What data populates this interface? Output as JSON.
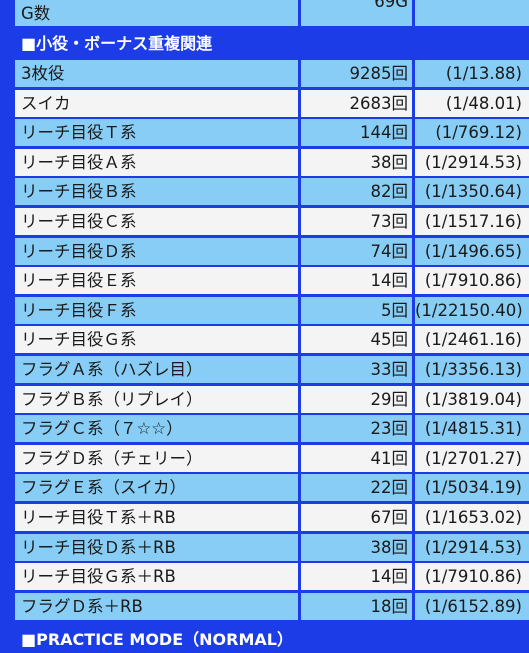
{
  "top": {
    "label": "G数",
    "count": "69G",
    "rate": ""
  },
  "section_small": "■小役・ボーナス重複関連",
  "rows": [
    {
      "name": "3枚役",
      "count": "9285回",
      "rate": "(1/13.88)"
    },
    {
      "name": "スイカ",
      "count": "2683回",
      "rate": "(1/48.01)"
    },
    {
      "name": "リーチ目役Ｔ系",
      "count": "144回",
      "rate": "(1/769.12)"
    },
    {
      "name": "リーチ目役Ａ系",
      "count": "38回",
      "rate": "(1/2914.53)"
    },
    {
      "name": "リーチ目役Ｂ系",
      "count": "82回",
      "rate": "(1/1350.64)"
    },
    {
      "name": "リーチ目役Ｃ系",
      "count": "73回",
      "rate": "(1/1517.16)"
    },
    {
      "name": "リーチ目役Ｄ系",
      "count": "74回",
      "rate": "(1/1496.65)"
    },
    {
      "name": "リーチ目役Ｅ系",
      "count": "14回",
      "rate": "(1/7910.86)"
    },
    {
      "name": "リーチ目役Ｆ系",
      "count": "5回",
      "rate": "(1/22150.40)"
    },
    {
      "name": "リーチ目役Ｇ系",
      "count": "45回",
      "rate": "(1/2461.16)"
    },
    {
      "name": "フラグＡ系（ハズレ目）",
      "count": "33回",
      "rate": "(1/3356.13)"
    },
    {
      "name": "フラグＢ系（リプレイ）",
      "count": "29回",
      "rate": "(1/3819.04)"
    },
    {
      "name": "フラグＣ系（７☆☆）",
      "count": "23回",
      "rate": "(1/4815.31)"
    },
    {
      "name": "フラグＤ系（チェリー）",
      "count": "41回",
      "rate": "(1/2701.27)"
    },
    {
      "name": "フラグＥ系（スイカ）",
      "count": "22回",
      "rate": "(1/5034.19)"
    },
    {
      "name": "リーチ目役Ｔ系＋RB",
      "count": "67回",
      "rate": "(1/1653.02)"
    },
    {
      "name": "リーチ目役Ｄ系＋RB",
      "count": "38回",
      "rate": "(1/2914.53)"
    },
    {
      "name": "リーチ目役Ｇ系＋RB",
      "count": "14回",
      "rate": "(1/7910.86)"
    },
    {
      "name": "フラグＤ系＋RB",
      "count": "18回",
      "rate": "(1/6152.89)"
    }
  ],
  "section_practice": "■PRACTICE MODE（NORMAL）"
}
